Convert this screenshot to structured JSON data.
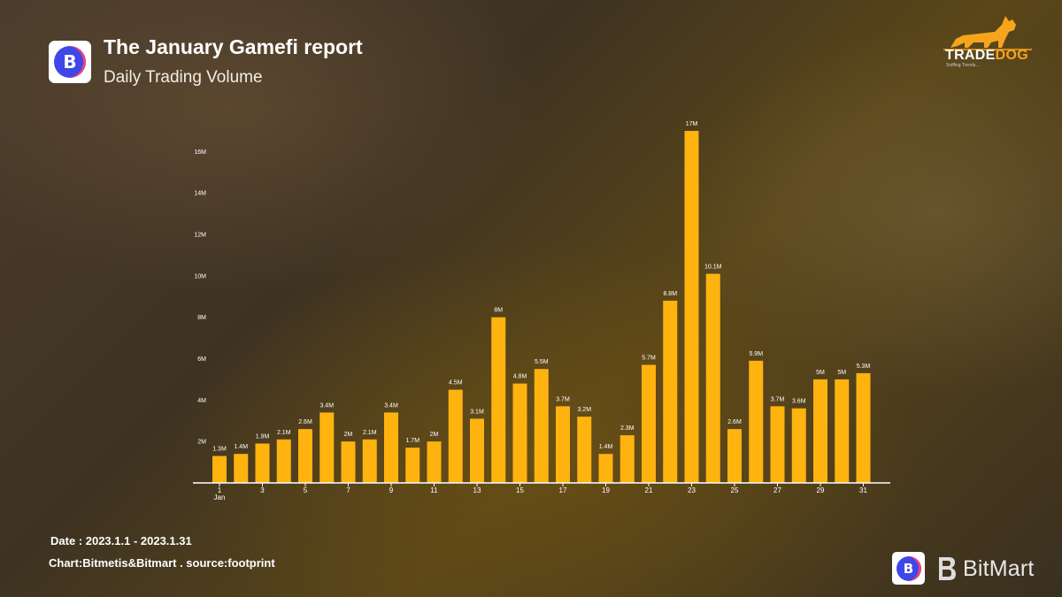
{
  "header": {
    "title": "The January Gamefi report",
    "subtitle": "Daily Trading Volume",
    "logo_letter": "B"
  },
  "brand": {
    "tradedog_part1": "TRADE",
    "tradedog_part2": "DOG",
    "tradedog_tagline": "Sniffing Trends...",
    "bitmart": "BitMart",
    "accent": "#f7a41d"
  },
  "footer": {
    "date": "Date : 2023.1.1 - 2023.1.31",
    "credit": "Chart:Bitmetis&Bitmart . source:footprint"
  },
  "chart_data": {
    "type": "bar",
    "title": "Daily Trading Volume",
    "xlabel": "",
    "ylabel": "",
    "ylim": [
      0,
      17
    ],
    "bar_color": "#ffb30f",
    "grid": false,
    "categories": [
      "1",
      "2",
      "3",
      "4",
      "5",
      "6",
      "7",
      "8",
      "9",
      "10",
      "11",
      "12",
      "13",
      "14",
      "15",
      "16",
      "17",
      "18",
      "19",
      "20",
      "21",
      "22",
      "23",
      "24",
      "25",
      "26",
      "27",
      "28",
      "29",
      "30",
      "31"
    ],
    "x_tick_labels": [
      "1",
      "3",
      "5",
      "7",
      "9",
      "11",
      "13",
      "15",
      "17",
      "19",
      "21",
      "23",
      "25",
      "27",
      "29",
      "31"
    ],
    "x_tick_sublabel": "Jan",
    "y_ticks": [
      2,
      4,
      6,
      8,
      10,
      12,
      14,
      16
    ],
    "y_tick_labels": [
      "2M",
      "4M",
      "6M",
      "8M",
      "10M",
      "12M",
      "14M",
      "16M"
    ],
    "values": [
      1.3,
      1.4,
      1.9,
      2.1,
      2.6,
      3.4,
      2,
      2.1,
      3.4,
      1.7,
      2,
      4.5,
      3.1,
      8,
      4.8,
      5.5,
      3.7,
      3.2,
      1.4,
      2.3,
      5.7,
      8.8,
      17,
      10.1,
      2.6,
      5.9,
      3.7,
      3.6,
      5,
      5,
      5.3
    ],
    "value_labels": [
      "1.3M",
      "1.4M",
      "1.9M",
      "2.1M",
      "2.6M",
      "3.4M",
      "2M",
      "2.1M",
      "3.4M",
      "1.7M",
      "2M",
      "4.5M",
      "3.1M",
      "8M",
      "4.8M",
      "5.5M",
      "3.7M",
      "3.2M",
      "1.4M",
      "2.3M",
      "5.7M",
      "8.8M",
      "17M",
      "10.1M",
      "2.6M",
      "5.9M",
      "3.7M",
      "3.6M",
      "5M",
      "5M",
      "5.3M"
    ]
  }
}
